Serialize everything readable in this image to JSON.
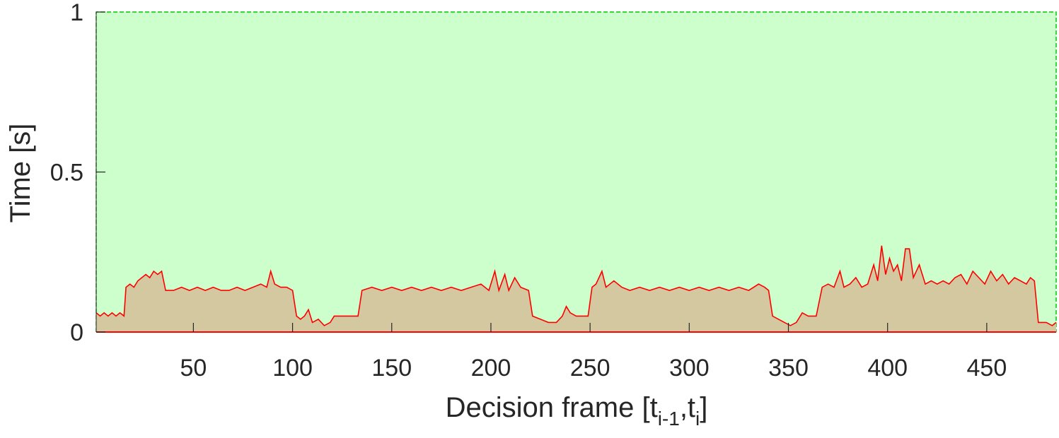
{
  "chart_data": {
    "type": "area",
    "xlabel": "Decision frame [t",
    "xlabel_sub": "i-1",
    "xlabel_mid": ",t",
    "xlabel_sub2": "i",
    "xlabel_end": "]",
    "ylabel": "Time [s]",
    "xlim": [
      1,
      485
    ],
    "ylim": [
      0,
      1
    ],
    "xticks": [
      50,
      100,
      150,
      200,
      250,
      300,
      350,
      400,
      450
    ],
    "xtick_labels": [
      "50",
      "100",
      "150",
      "200",
      "250",
      "300",
      "350",
      "400",
      "450"
    ],
    "yticks": [
      0,
      0.5,
      1
    ],
    "ytick_labels": [
      "0",
      "0.5",
      "1"
    ],
    "grid": false,
    "colors": {
      "budget_fill": "#ccffcc",
      "budget_edge": "#00cc00",
      "usage_fill": "#d4c8a0",
      "usage_line": "#ff0000"
    },
    "series": [
      {
        "role": "budget",
        "values_constant": 1.0
      },
      {
        "role": "computation",
        "points": [
          [
            1,
            0.06
          ],
          [
            3,
            0.05
          ],
          [
            5,
            0.06
          ],
          [
            7,
            0.05
          ],
          [
            9,
            0.06
          ],
          [
            11,
            0.05
          ],
          [
            13,
            0.06
          ],
          [
            15,
            0.05
          ],
          [
            16,
            0.14
          ],
          [
            18,
            0.15
          ],
          [
            20,
            0.14
          ],
          [
            22,
            0.16
          ],
          [
            24,
            0.17
          ],
          [
            26,
            0.18
          ],
          [
            28,
            0.17
          ],
          [
            30,
            0.19
          ],
          [
            32,
            0.18
          ],
          [
            34,
            0.19
          ],
          [
            36,
            0.13
          ],
          [
            40,
            0.13
          ],
          [
            44,
            0.14
          ],
          [
            48,
            0.13
          ],
          [
            52,
            0.14
          ],
          [
            56,
            0.13
          ],
          [
            60,
            0.14
          ],
          [
            64,
            0.13
          ],
          [
            68,
            0.13
          ],
          [
            72,
            0.14
          ],
          [
            76,
            0.13
          ],
          [
            80,
            0.14
          ],
          [
            84,
            0.15
          ],
          [
            87,
            0.14
          ],
          [
            89,
            0.19
          ],
          [
            91,
            0.15
          ],
          [
            94,
            0.14
          ],
          [
            97,
            0.14
          ],
          [
            100,
            0.13
          ],
          [
            102,
            0.05
          ],
          [
            104,
            0.04
          ],
          [
            106,
            0.05
          ],
          [
            108,
            0.07
          ],
          [
            110,
            0.03
          ],
          [
            113,
            0.04
          ],
          [
            116,
            0.02
          ],
          [
            119,
            0.03
          ],
          [
            121,
            0.05
          ],
          [
            125,
            0.05
          ],
          [
            129,
            0.05
          ],
          [
            133,
            0.05
          ],
          [
            135,
            0.13
          ],
          [
            140,
            0.14
          ],
          [
            145,
            0.13
          ],
          [
            150,
            0.14
          ],
          [
            155,
            0.13
          ],
          [
            160,
            0.14
          ],
          [
            165,
            0.13
          ],
          [
            170,
            0.14
          ],
          [
            175,
            0.13
          ],
          [
            180,
            0.14
          ],
          [
            185,
            0.13
          ],
          [
            190,
            0.14
          ],
          [
            195,
            0.15
          ],
          [
            199,
            0.13
          ],
          [
            202,
            0.19
          ],
          [
            204,
            0.13
          ],
          [
            207,
            0.18
          ],
          [
            209,
            0.13
          ],
          [
            212,
            0.17
          ],
          [
            215,
            0.14
          ],
          [
            219,
            0.13
          ],
          [
            221,
            0.05
          ],
          [
            225,
            0.04
          ],
          [
            229,
            0.03
          ],
          [
            233,
            0.03
          ],
          [
            236,
            0.05
          ],
          [
            238,
            0.08
          ],
          [
            240,
            0.06
          ],
          [
            243,
            0.05
          ],
          [
            246,
            0.05
          ],
          [
            249,
            0.05
          ],
          [
            251,
            0.14
          ],
          [
            253,
            0.15
          ],
          [
            256,
            0.19
          ],
          [
            258,
            0.14
          ],
          [
            262,
            0.16
          ],
          [
            266,
            0.14
          ],
          [
            270,
            0.13
          ],
          [
            275,
            0.14
          ],
          [
            280,
            0.13
          ],
          [
            285,
            0.14
          ],
          [
            290,
            0.13
          ],
          [
            295,
            0.14
          ],
          [
            300,
            0.13
          ],
          [
            305,
            0.14
          ],
          [
            310,
            0.13
          ],
          [
            315,
            0.14
          ],
          [
            320,
            0.13
          ],
          [
            325,
            0.14
          ],
          [
            330,
            0.13
          ],
          [
            335,
            0.15
          ],
          [
            338,
            0.14
          ],
          [
            340,
            0.13
          ],
          [
            342,
            0.05
          ],
          [
            345,
            0.04
          ],
          [
            348,
            0.03
          ],
          [
            351,
            0.02
          ],
          [
            354,
            0.03
          ],
          [
            357,
            0.06
          ],
          [
            360,
            0.05
          ],
          [
            364,
            0.05
          ],
          [
            367,
            0.14
          ],
          [
            370,
            0.15
          ],
          [
            373,
            0.14
          ],
          [
            376,
            0.19
          ],
          [
            378,
            0.14
          ],
          [
            381,
            0.15
          ],
          [
            384,
            0.17
          ],
          [
            387,
            0.14
          ],
          [
            390,
            0.15
          ],
          [
            393,
            0.21
          ],
          [
            395,
            0.16
          ],
          [
            397,
            0.27
          ],
          [
            399,
            0.18
          ],
          [
            401,
            0.23
          ],
          [
            403,
            0.19
          ],
          [
            405,
            0.21
          ],
          [
            407,
            0.16
          ],
          [
            409,
            0.26
          ],
          [
            411,
            0.26
          ],
          [
            413,
            0.17
          ],
          [
            416,
            0.21
          ],
          [
            419,
            0.15
          ],
          [
            422,
            0.16
          ],
          [
            425,
            0.15
          ],
          [
            428,
            0.16
          ],
          [
            431,
            0.15
          ],
          [
            434,
            0.17
          ],
          [
            437,
            0.18
          ],
          [
            440,
            0.15
          ],
          [
            443,
            0.19
          ],
          [
            446,
            0.17
          ],
          [
            449,
            0.15
          ],
          [
            452,
            0.19
          ],
          [
            455,
            0.16
          ],
          [
            458,
            0.18
          ],
          [
            461,
            0.15
          ],
          [
            464,
            0.17
          ],
          [
            467,
            0.16
          ],
          [
            470,
            0.15
          ],
          [
            472,
            0.17
          ],
          [
            474,
            0.16
          ],
          [
            476,
            0.03
          ],
          [
            480,
            0.03
          ],
          [
            483,
            0.02
          ],
          [
            485,
            0.03
          ]
        ]
      }
    ]
  }
}
